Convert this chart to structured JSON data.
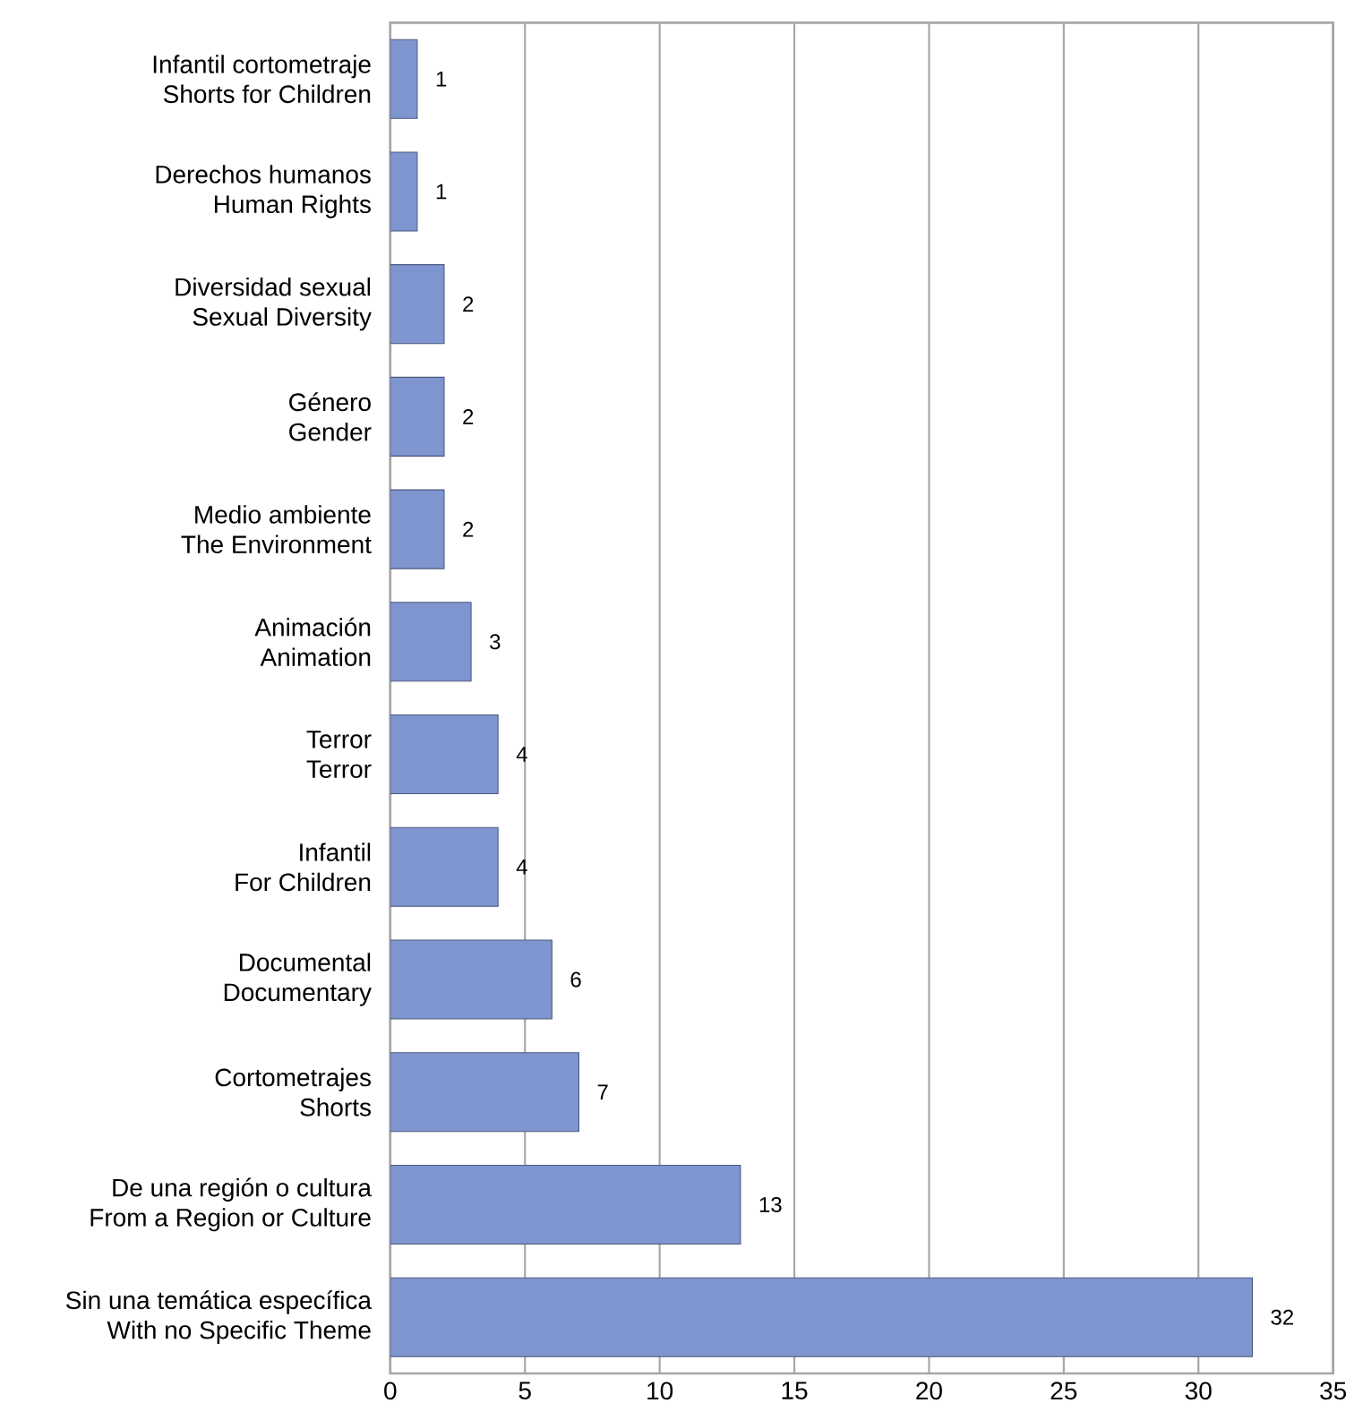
{
  "chart_data": {
    "type": "bar",
    "orientation": "horizontal",
    "categories": [
      "Infantil cortometraje\nShorts for Children",
      "Derechos humanos\nHuman Rights",
      "Diversidad sexual\nSexual Diversity",
      "Género\nGender",
      "Medio ambiente\nThe Environment",
      "Animación\nAnimation",
      "Terror\nTerror",
      "Infantil\nFor Children",
      "Documental\nDocumentary",
      "Cortometrajes\nShorts",
      "De una región o cultura\nFrom a Region or Culture",
      "Sin una temática específica\nWith no Specific Theme"
    ],
    "values": [
      1,
      1,
      2,
      2,
      2,
      3,
      4,
      4,
      6,
      7,
      13,
      32
    ],
    "color": "#7f95d0",
    "xlim": [
      0,
      35
    ],
    "xticks": [
      0,
      5,
      10,
      15,
      20,
      25,
      30,
      35
    ],
    "grid": "x",
    "data_labels": true
  }
}
